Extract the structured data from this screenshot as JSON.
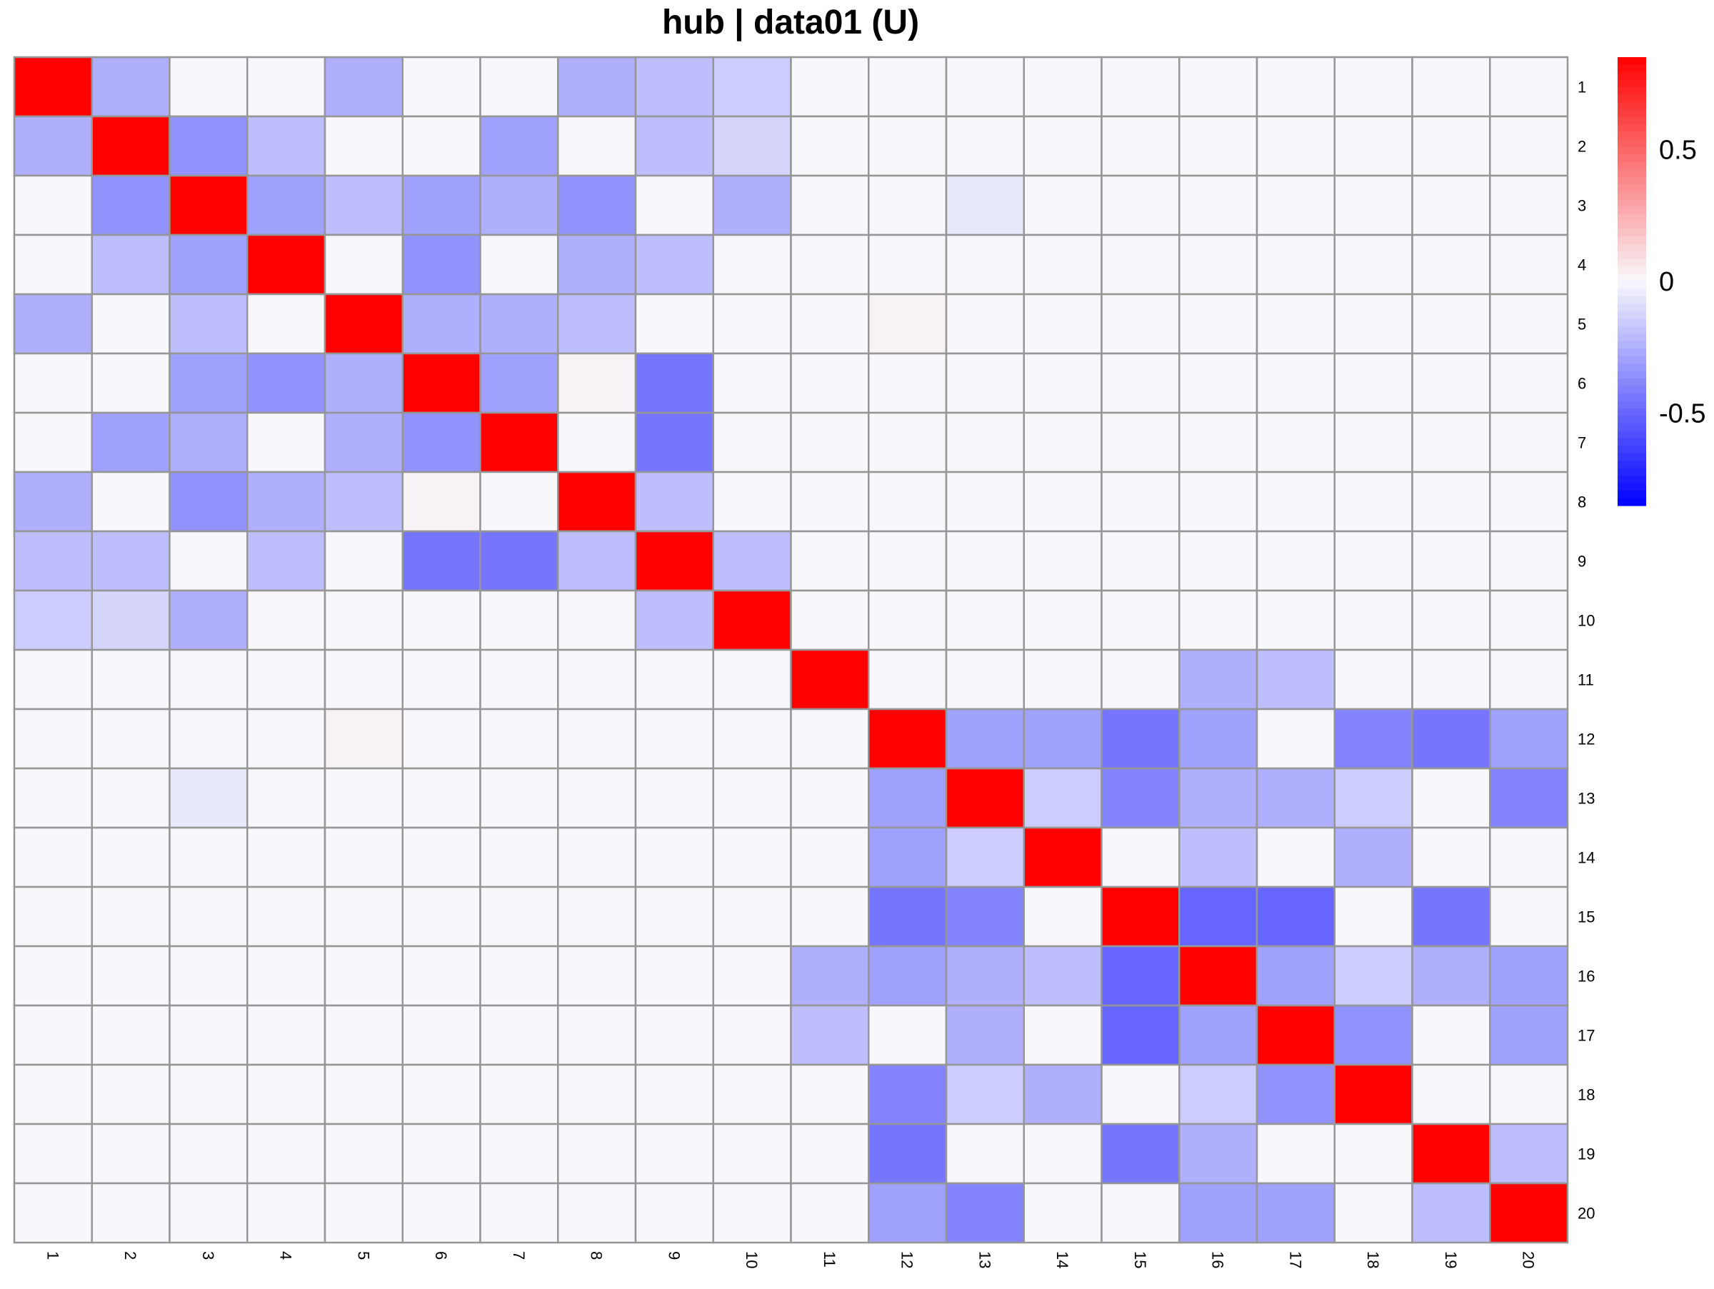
{
  "chart_data": {
    "type": "heatmap",
    "title": "hub | data01 (U)",
    "row_labels": [
      "1",
      "2",
      "3",
      "4",
      "5",
      "6",
      "7",
      "8",
      "9",
      "10",
      "11",
      "12",
      "13",
      "14",
      "15",
      "16",
      "17",
      "18",
      "19",
      "20"
    ],
    "col_labels": [
      "1",
      "2",
      "3",
      "4",
      "5",
      "6",
      "7",
      "8",
      "9",
      "10",
      "11",
      "12",
      "13",
      "14",
      "15",
      "16",
      "17",
      "18",
      "19",
      "20"
    ],
    "grid": true,
    "legend": {
      "position": "right",
      "range": [
        -0.85,
        0.85
      ],
      "ticks": [
        0.5,
        0,
        -0.5
      ],
      "tick_labels": [
        "0.5",
        "0",
        "-0.5"
      ],
      "colors": {
        "low": "#0000ff",
        "mid": "#f8f8fc",
        "high": "#ff0000"
      }
    },
    "matrix": [
      [
        0.85,
        -0.25,
        0,
        0,
        -0.25,
        0,
        0,
        -0.25,
        -0.2,
        -0.15,
        0,
        0,
        0,
        0,
        0,
        0,
        0,
        0,
        0,
        0
      ],
      [
        -0.25,
        0.85,
        -0.35,
        -0.2,
        0,
        0,
        -0.3,
        0,
        -0.2,
        -0.12,
        0,
        0,
        0,
        0,
        0,
        0,
        0,
        0,
        0,
        0
      ],
      [
        0,
        -0.35,
        0.85,
        -0.3,
        -0.2,
        -0.3,
        -0.25,
        -0.35,
        0,
        -0.25,
        0,
        0,
        -0.05,
        0,
        0,
        0,
        0,
        0,
        0,
        0
      ],
      [
        0,
        -0.2,
        -0.3,
        0.85,
        0,
        -0.35,
        0,
        -0.25,
        -0.2,
        0,
        0,
        0,
        0,
        0,
        0,
        0,
        0,
        0,
        0,
        0
      ],
      [
        -0.25,
        0,
        -0.2,
        0,
        0.85,
        -0.25,
        -0.25,
        -0.2,
        0,
        0,
        0,
        0.02,
        0,
        0,
        0,
        0,
        0,
        0,
        0,
        0
      ],
      [
        0,
        0,
        -0.3,
        -0.35,
        -0.25,
        0.85,
        -0.3,
        0.02,
        -0.45,
        0,
        0,
        0,
        0,
        0,
        0,
        0,
        0,
        0,
        0,
        0
      ],
      [
        0,
        -0.3,
        -0.25,
        0,
        -0.25,
        -0.35,
        0.85,
        0,
        -0.45,
        0,
        0,
        0,
        0,
        0,
        0,
        0,
        0,
        0,
        0,
        0
      ],
      [
        -0.25,
        0,
        -0.35,
        -0.25,
        -0.2,
        0.02,
        0,
        0.85,
        -0.2,
        0,
        0,
        0,
        0,
        0,
        0,
        0,
        0,
        0,
        0,
        0
      ],
      [
        -0.2,
        -0.2,
        0,
        -0.2,
        0,
        -0.45,
        -0.45,
        -0.2,
        0.85,
        -0.2,
        0,
        0,
        0,
        0,
        0,
        0,
        0,
        0,
        0,
        0
      ],
      [
        -0.15,
        -0.12,
        -0.25,
        0,
        0,
        0,
        0,
        0,
        -0.2,
        0.85,
        0,
        0,
        0,
        0,
        0,
        0,
        0,
        0,
        0,
        0
      ],
      [
        0,
        0,
        0,
        0,
        0,
        0,
        0,
        0,
        0,
        0,
        0.85,
        0,
        0,
        0,
        0,
        -0.25,
        -0.2,
        0,
        0,
        0
      ],
      [
        0,
        0,
        0,
        0,
        0.02,
        0,
        0,
        0,
        0,
        0,
        0,
        0.85,
        -0.3,
        -0.3,
        -0.45,
        -0.3,
        0,
        -0.4,
        -0.45,
        -0.3
      ],
      [
        0,
        0,
        -0.05,
        0,
        0,
        0,
        0,
        0,
        0,
        0,
        0,
        -0.3,
        0.85,
        -0.15,
        -0.4,
        -0.25,
        -0.25,
        -0.15,
        0,
        -0.4
      ],
      [
        0,
        0,
        0,
        0,
        0,
        0,
        0,
        0,
        0,
        0,
        0,
        -0.3,
        -0.15,
        0.85,
        0,
        -0.2,
        0,
        -0.25,
        0,
        0
      ],
      [
        0,
        0,
        0,
        0,
        0,
        0,
        0,
        0,
        0,
        0,
        0,
        -0.45,
        -0.4,
        0,
        0.85,
        -0.5,
        -0.5,
        0,
        -0.45,
        0
      ],
      [
        0,
        0,
        0,
        0,
        0,
        0,
        0,
        0,
        0,
        0,
        -0.25,
        -0.3,
        -0.25,
        -0.2,
        -0.5,
        0.85,
        -0.3,
        -0.15,
        -0.25,
        -0.3
      ],
      [
        0,
        0,
        0,
        0,
        0,
        0,
        0,
        0,
        0,
        0,
        -0.2,
        0,
        -0.25,
        0,
        -0.5,
        -0.3,
        0.85,
        -0.35,
        0,
        -0.3
      ],
      [
        0,
        0,
        0,
        0,
        0,
        0,
        0,
        0,
        0,
        0,
        0,
        -0.4,
        -0.15,
        -0.25,
        0,
        -0.15,
        -0.35,
        0.85,
        0,
        0
      ],
      [
        0,
        0,
        0,
        0,
        0,
        0,
        0,
        0,
        0,
        0,
        0,
        -0.45,
        0,
        0,
        -0.45,
        -0.25,
        0,
        0,
        0.85,
        -0.2
      ],
      [
        0,
        0,
        0,
        0,
        0,
        0,
        0,
        0,
        0,
        0,
        0,
        -0.3,
        -0.4,
        0,
        0,
        -0.3,
        -0.3,
        0,
        -0.2,
        0.85
      ]
    ]
  }
}
